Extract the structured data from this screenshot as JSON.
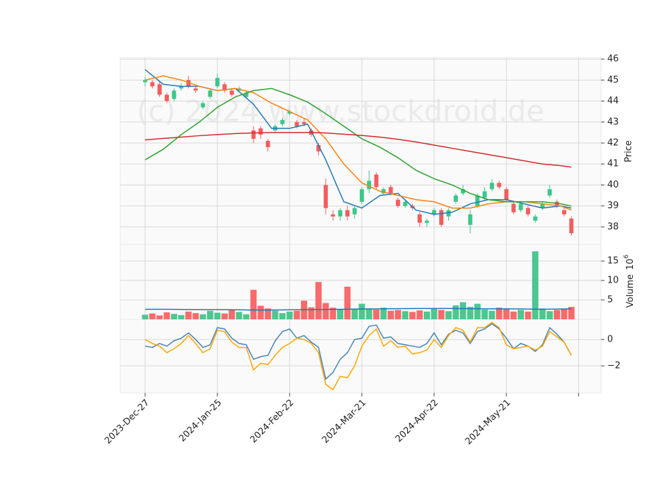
{
  "chart_data": [
    {
      "type": "candlestick",
      "ylabel": "Price",
      "watermark": "(c) 2024 www.stockdroid.de",
      "ylim": [
        37.17,
        46.07
      ],
      "yticks": [
        38,
        39,
        40,
        41,
        42,
        43,
        44,
        45,
        46
      ],
      "grid": true,
      "up_color": "#3cc68a",
      "down_color": "#f25d5d",
      "x": [
        0,
        2,
        4,
        6,
        8,
        10,
        12,
        14,
        16,
        18,
        20,
        22,
        24,
        26,
        28,
        30,
        32,
        34,
        36,
        38,
        40,
        42,
        44,
        46,
        48,
        50,
        52,
        54,
        56,
        58,
        60,
        62,
        64,
        66,
        68,
        70,
        72,
        74,
        76,
        78,
        80,
        82,
        84,
        86,
        88,
        90,
        92,
        94,
        96,
        98,
        100,
        102,
        104,
        106,
        108,
        110,
        112,
        114,
        116,
        118
      ],
      "open": [
        44.9,
        44.9,
        44.8,
        44.3,
        44.1,
        44.6,
        45.0,
        44.6,
        43.7,
        44.2,
        44.7,
        44.8,
        44.5,
        44.5,
        44.2,
        42.6,
        42.7,
        42.1,
        42.6,
        42.9,
        43.4,
        43.0,
        43.0,
        42.6,
        41.9,
        40.0,
        38.6,
        38.5,
        38.8,
        38.6,
        39.2,
        39.8,
        40.5,
        39.6,
        39.9,
        39.3,
        39.0,
        39.0,
        38.6,
        38.2,
        38.6,
        38.8,
        38.5,
        39.2,
        39.6,
        38.1,
        39.0,
        39.4,
        39.8,
        40.1,
        39.8,
        39.1,
        38.8,
        38.9,
        38.3,
        38.9,
        39.5,
        39.2,
        38.8,
        38.4
      ],
      "high": [
        45.15,
        45.0,
        44.9,
        44.4,
        44.6,
        44.85,
        45.2,
        44.7,
        44.0,
        44.6,
        45.3,
        44.9,
        44.6,
        44.7,
        44.5,
        42.8,
        42.8,
        42.2,
        42.9,
        43.2,
        43.6,
        43.1,
        43.2,
        42.7,
        42.0,
        40.3,
        38.8,
        38.9,
        39.0,
        39.0,
        39.9,
        40.7,
        40.6,
        39.9,
        40.0,
        39.4,
        39.3,
        39.1,
        38.7,
        38.4,
        38.9,
        38.9,
        38.9,
        39.6,
        40.0,
        38.8,
        39.6,
        39.9,
        40.3,
        40.2,
        39.9,
        39.2,
        39.2,
        39.0,
        38.6,
        39.2,
        40.0,
        39.3,
        38.9,
        38.5
      ],
      "low": [
        44.7,
        44.6,
        44.2,
        43.9,
        44.0,
        44.5,
        44.6,
        44.4,
        43.6,
        44.1,
        44.6,
        44.4,
        44.2,
        44.4,
        44.1,
        42.0,
        42.2,
        41.6,
        42.5,
        42.8,
        43.3,
        42.7,
        42.8,
        42.3,
        41.4,
        38.6,
        38.3,
        38.3,
        38.3,
        38.4,
        39.1,
        39.6,
        39.8,
        39.5,
        39.5,
        38.9,
        38.9,
        38.8,
        38.0,
        38.0,
        38.5,
        38.0,
        38.3,
        39.1,
        39.5,
        37.7,
        38.9,
        39.3,
        39.7,
        39.8,
        39.2,
        38.6,
        38.7,
        38.5,
        38.2,
        38.8,
        39.4,
        38.9,
        38.5,
        37.6
      ],
      "close": [
        45.0,
        44.7,
        44.3,
        44.0,
        44.5,
        44.7,
        44.7,
        44.5,
        43.9,
        44.5,
        45.1,
        44.5,
        44.3,
        44.6,
        44.4,
        42.2,
        42.4,
        41.8,
        42.8,
        43.1,
        43.5,
        42.8,
        42.9,
        42.4,
        41.6,
        38.9,
        38.5,
        38.8,
        38.5,
        38.9,
        39.8,
        40.2,
        39.9,
        39.8,
        39.6,
        39.0,
        39.2,
        38.9,
        38.2,
        38.3,
        38.8,
        38.1,
        38.8,
        39.5,
        39.8,
        38.6,
        39.5,
        39.7,
        40.1,
        39.9,
        39.3,
        38.7,
        39.1,
        38.6,
        38.5,
        39.1,
        39.8,
        39.0,
        38.6,
        37.7
      ],
      "series": [
        {
          "color": "#1f77b4",
          "x": [
            0,
            5,
            10,
            15,
            20,
            25,
            30,
            35,
            40,
            45,
            50,
            55,
            60,
            65,
            70,
            75,
            80,
            85,
            90,
            95,
            100,
            105,
            110,
            115,
            118
          ],
          "values": [
            45.5,
            44.8,
            44.7,
            44.7,
            44.5,
            44.6,
            43.85,
            42.7,
            42.7,
            42.9,
            41.2,
            39.2,
            38.9,
            39.5,
            39.6,
            38.8,
            38.6,
            38.7,
            39.1,
            39.3,
            39.3,
            39.1,
            38.9,
            39.0,
            38.9
          ]
        },
        {
          "color": "#ff7f0e",
          "x": [
            0,
            5,
            10,
            15,
            20,
            25,
            30,
            35,
            40,
            45,
            50,
            55,
            60,
            65,
            70,
            75,
            80,
            85,
            90,
            95,
            100,
            105,
            110,
            115,
            118
          ],
          "values": [
            45.0,
            45.2,
            45.0,
            44.7,
            44.5,
            44.6,
            44.4,
            43.9,
            43.5,
            43.1,
            42.2,
            41.0,
            40.1,
            39.7,
            39.5,
            39.3,
            39.2,
            38.9,
            38.9,
            39.1,
            39.2,
            39.2,
            39.1,
            39.0,
            38.8
          ]
        },
        {
          "color": "#2ca02c",
          "x": [
            0,
            5,
            10,
            15,
            20,
            25,
            30,
            35,
            40,
            45,
            50,
            55,
            60,
            65,
            70,
            75,
            80,
            85,
            90,
            95,
            100,
            105,
            110,
            115,
            118
          ],
          "values": [
            41.2,
            41.7,
            42.4,
            43.0,
            43.7,
            44.2,
            44.5,
            44.6,
            44.3,
            43.95,
            43.4,
            42.8,
            42.2,
            41.8,
            41.3,
            40.7,
            40.3,
            40.0,
            39.6,
            39.3,
            39.2,
            39.2,
            39.2,
            39.1,
            39.0
          ]
        },
        {
          "color": "#d62728",
          "x": [
            0,
            5,
            10,
            15,
            20,
            25,
            30,
            35,
            40,
            45,
            50,
            55,
            60,
            65,
            70,
            75,
            80,
            85,
            90,
            95,
            100,
            105,
            110,
            115,
            118
          ],
          "values": [
            42.15,
            42.22,
            42.28,
            42.35,
            42.4,
            42.45,
            42.48,
            42.5,
            42.5,
            42.5,
            42.48,
            42.42,
            42.36,
            42.28,
            42.18,
            42.05,
            41.9,
            41.75,
            41.6,
            41.45,
            41.3,
            41.15,
            41.0,
            40.92,
            40.85
          ]
        }
      ]
    },
    {
      "type": "bar",
      "ylabel": "Volume",
      "ylabel_scale": "10",
      "ylabel_exponent": "6",
      "ylim": [
        0,
        19.3
      ],
      "yticks": [
        5,
        10,
        15
      ],
      "grid": true,
      "up_color": "#4cc790",
      "down_color": "#f96a6a",
      "x": [
        0,
        2,
        4,
        6,
        8,
        10,
        12,
        14,
        16,
        18,
        20,
        22,
        24,
        26,
        28,
        30,
        32,
        34,
        36,
        38,
        40,
        42,
        44,
        46,
        48,
        50,
        52,
        54,
        56,
        58,
        60,
        62,
        64,
        66,
        68,
        70,
        72,
        74,
        76,
        78,
        80,
        82,
        84,
        86,
        88,
        90,
        92,
        94,
        96,
        98,
        100,
        102,
        104,
        106,
        108,
        110,
        112,
        114,
        116,
        118
      ],
      "values": [
        1.2,
        1.5,
        1.0,
        1.8,
        1.4,
        1.1,
        2.0,
        1.6,
        1.3,
        2.2,
        1.7,
        1.5,
        2.6,
        1.9,
        1.3,
        7.6,
        3.5,
        2.8,
        2.2,
        1.6,
        2.0,
        2.2,
        4.8,
        3.1,
        9.6,
        4.2,
        3.0,
        2.6,
        8.4,
        2.6,
        4.0,
        2.8,
        2.5,
        3.0,
        2.2,
        2.4,
        2.1,
        1.9,
        2.3,
        2.0,
        2.8,
        2.4,
        2.1,
        3.6,
        4.4,
        3.2,
        4.0,
        2.5,
        2.2,
        3.0,
        2.6,
        2.0,
        2.4,
        2.0,
        17.5,
        2.8,
        2.1,
        2.4,
        2.6,
        3.2
      ],
      "series": [
        {
          "color": "#1f77b4",
          "x": [
            0,
            5,
            10,
            15,
            20,
            25,
            30,
            35,
            40,
            45,
            50,
            55,
            60,
            65,
            70,
            75,
            80,
            85,
            90,
            95,
            100,
            105,
            110,
            115,
            118
          ],
          "values": [
            2.6,
            2.6,
            2.55,
            2.5,
            2.5,
            2.45,
            2.4,
            2.4,
            2.45,
            2.5,
            2.55,
            2.6,
            2.65,
            2.7,
            2.75,
            2.8,
            2.8,
            2.8,
            2.75,
            2.7,
            2.7,
            2.65,
            2.6,
            2.65,
            2.7
          ]
        }
      ]
    },
    {
      "type": "line",
      "ylim": [
        -4.05,
        1.53
      ],
      "yticks": [
        {
          "value": -2,
          "label": "−2"
        },
        0
      ],
      "grid": true,
      "xlim": [
        -6.9,
        126.2
      ],
      "xticks": [
        {
          "value": 0,
          "label": "2023-Dec-27"
        },
        {
          "value": 20,
          "label": "2024-Jan-25"
        },
        {
          "value": 40,
          "label": "2024-Feb-22"
        },
        {
          "value": 60,
          "label": "2024-Mar-21"
        },
        {
          "value": 80,
          "label": "2024-Apr-22"
        },
        {
          "value": 100,
          "label": "2024-May-21"
        },
        {
          "value": 120,
          "label": null
        }
      ],
      "series": [
        {
          "color": "#4682b4",
          "x": [
            0,
            2,
            4,
            6,
            8,
            10,
            12,
            14,
            16,
            18,
            20,
            22,
            24,
            26,
            28,
            30,
            32,
            34,
            36,
            38,
            40,
            42,
            44,
            46,
            48,
            50,
            52,
            54,
            56,
            58,
            60,
            62,
            64,
            66,
            68,
            70,
            72,
            74,
            76,
            78,
            80,
            82,
            84,
            86,
            88,
            90,
            92,
            94,
            96,
            98,
            100,
            102,
            104,
            106,
            108,
            110,
            112,
            114,
            116,
            118
          ],
          "values": [
            -0.5,
            -0.6,
            -0.3,
            -0.5,
            -0.1,
            0.1,
            0.5,
            0.0,
            -0.6,
            -0.4,
            0.9,
            0.8,
            0.1,
            -0.3,
            -0.4,
            -1.5,
            -1.3,
            -1.2,
            -0.1,
            0.6,
            0.8,
            0.1,
            0.3,
            -0.2,
            -0.6,
            -3.0,
            -2.5,
            -1.5,
            -1.0,
            0.0,
            0.1,
            1.0,
            1.1,
            0.1,
            0.2,
            -0.3,
            -0.4,
            -0.5,
            -0.6,
            -0.3,
            0.5,
            -0.4,
            0.4,
            0.7,
            0.5,
            -0.3,
            0.6,
            0.8,
            1.2,
            0.8,
            0.1,
            -0.7,
            -0.3,
            -0.5,
            -0.9,
            -0.4,
            0.9,
            0.4,
            -0.2,
            -1.2
          ]
        },
        {
          "color": "#ffa500",
          "x": [
            0,
            2,
            4,
            6,
            8,
            10,
            12,
            14,
            16,
            18,
            20,
            22,
            24,
            26,
            28,
            30,
            32,
            34,
            36,
            38,
            40,
            42,
            44,
            46,
            48,
            50,
            52,
            54,
            56,
            58,
            60,
            62,
            64,
            66,
            68,
            70,
            72,
            74,
            76,
            78,
            80,
            82,
            84,
            86,
            88,
            90,
            92,
            94,
            96,
            98,
            100,
            102,
            104,
            106,
            108,
            110,
            112,
            114,
            116,
            118
          ],
          "values": [
            0.0,
            -0.3,
            -0.5,
            -1.0,
            -0.7,
            -0.3,
            0.3,
            -0.3,
            -1.0,
            -0.7,
            0.7,
            0.6,
            -0.2,
            -0.6,
            -0.6,
            -2.3,
            -1.8,
            -1.9,
            -1.2,
            -0.6,
            -0.3,
            0.1,
            0.0,
            -0.3,
            -1.0,
            -3.4,
            -3.8,
            -2.8,
            -2.9,
            -2.0,
            -0.5,
            0.3,
            0.8,
            -0.5,
            -0.1,
            -0.6,
            -0.5,
            -1.1,
            -1.0,
            -0.8,
            0.0,
            -0.6,
            0.3,
            0.9,
            0.7,
            -0.2,
            0.9,
            0.9,
            1.3,
            0.9,
            -0.4,
            -0.7,
            -0.6,
            -0.5,
            -0.8,
            -0.5,
            0.6,
            0.2,
            -0.2,
            -1.2
          ]
        }
      ]
    }
  ]
}
